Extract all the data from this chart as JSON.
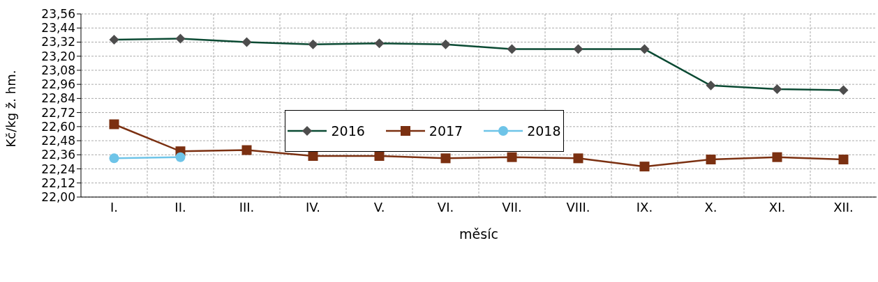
{
  "chart_data": {
    "type": "line",
    "xlabel": "měsíc",
    "ylabel": "Kč/kg ž. hm.",
    "categories": [
      "I.",
      "II.",
      "III.",
      "IV.",
      "V.",
      "VI.",
      "VII.",
      "VIII.",
      "IX.",
      "X.",
      "XI.",
      "XII."
    ],
    "series": [
      {
        "name": "2016",
        "color": "#0b4a33",
        "marker": "diamond",
        "values": [
          23.34,
          23.35,
          23.32,
          23.3,
          23.31,
          23.3,
          23.26,
          23.26,
          23.26,
          22.95,
          22.92,
          22.91
        ]
      },
      {
        "name": "2017",
        "color": "#7b3011",
        "marker": "square",
        "values": [
          22.62,
          22.39,
          22.4,
          22.35,
          22.35,
          22.33,
          22.34,
          22.33,
          22.26,
          22.32,
          22.34,
          22.32
        ]
      },
      {
        "name": "2018",
        "color": "#6ec4e8",
        "marker": "circle",
        "values": [
          22.33,
          22.34,
          null,
          null,
          null,
          null,
          null,
          null,
          null,
          null,
          null,
          null
        ]
      }
    ],
    "ylim": [
      22,
      23.56
    ],
    "yticks": [
      {
        "value": 22,
        "label": "22,00"
      },
      {
        "value": 22.12,
        "label": "22,12"
      },
      {
        "value": 22.24,
        "label": "22,24"
      },
      {
        "value": 22.36,
        "label": "22,36"
      },
      {
        "value": 22.48,
        "label": "22,48"
      },
      {
        "value": 22.6,
        "label": "22,60"
      },
      {
        "value": 22.72,
        "label": "22,72"
      },
      {
        "value": 22.84,
        "label": "22,84"
      },
      {
        "value": 22.96,
        "label": "22,96"
      },
      {
        "value": 23.08,
        "label": "23,08"
      },
      {
        "value": 23.2,
        "label": "23,20"
      },
      {
        "value": 23.32,
        "label": "23,32"
      },
      {
        "value": 23.44,
        "label": "23,44"
      },
      {
        "value": 23.56,
        "label": "23,56"
      }
    ],
    "grid": true,
    "legend": "center",
    "line_style": "solid"
  }
}
